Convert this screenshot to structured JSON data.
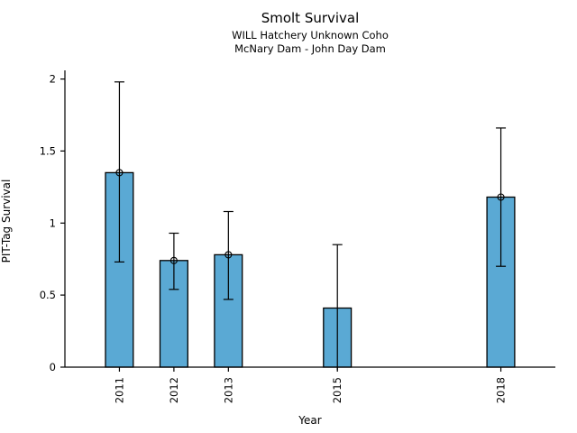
{
  "page": {
    "background": "#ffffff"
  },
  "chart_data": {
    "type": "bar",
    "title": "Smolt Survival",
    "subtitle1": "WILL Hatchery Unknown Coho",
    "subtitle2": "McNary Dam - John Day Dam",
    "xlabel": "Year",
    "ylabel": "PIT-Tag Survival",
    "categories": [
      "2011",
      "2012",
      "2013",
      "2015",
      "2018"
    ],
    "values": [
      1.35,
      0.74,
      0.78,
      0.41,
      1.18
    ],
    "error_low": [
      0.73,
      0.54,
      0.47,
      -0.02,
      0.7
    ],
    "error_high": [
      1.98,
      0.93,
      1.08,
      0.85,
      1.66
    ],
    "point_markers": [
      true,
      true,
      true,
      false,
      true
    ],
    "xlim": [
      2010,
      2019
    ],
    "ylim": [
      0,
      2.06
    ],
    "yticks": [
      0,
      0.5,
      1,
      1.5,
      2
    ],
    "ytick_labels": [
      "0",
      "0.5",
      "1",
      "1.5",
      "2"
    ],
    "bar_width_years": 0.51,
    "bar_color": "#5aa9d4",
    "bar_edge_color": "#000000",
    "errorbar_color": "#000000",
    "axis_color": "#000000",
    "grid": false,
    "legend": null
  }
}
